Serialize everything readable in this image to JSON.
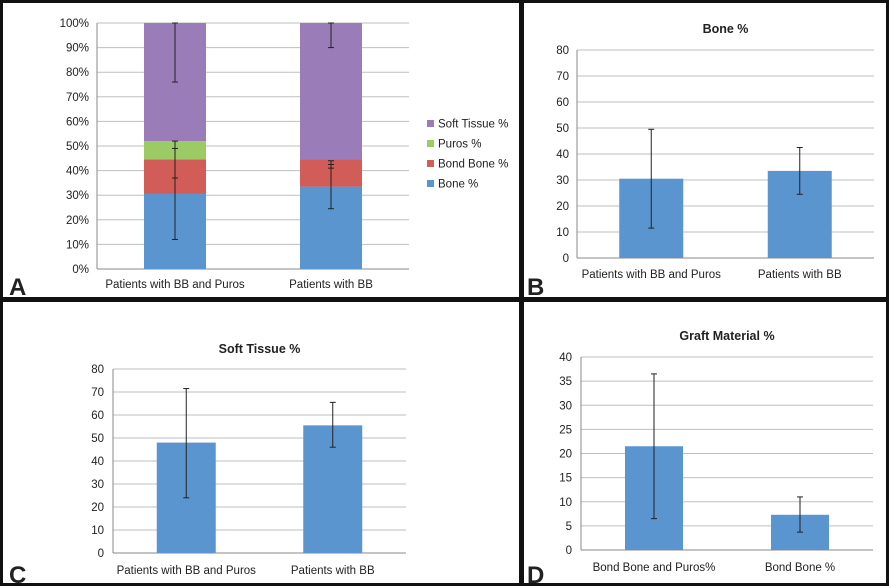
{
  "figure": {
    "colors": {
      "frame": "#111111",
      "grid": "#bfbfbf",
      "bar": "#5b95cf",
      "error": "#222222",
      "bone": "#5b95cf",
      "bond_bone": "#d25c57",
      "puros": "#9ccb65",
      "soft_tissue": "#9a7db8"
    }
  },
  "chart_data": [
    {
      "panel": "A",
      "type": "bar",
      "stacked": true,
      "title": "",
      "categories": [
        "Patients with BB and Puros",
        "Patients with BB"
      ],
      "ylim": [
        0,
        100
      ],
      "yticks": [
        "0%",
        "10%",
        "20%",
        "30%",
        "40%",
        "50%",
        "60%",
        "70%",
        "80%",
        "90%",
        "100%"
      ],
      "grid": true,
      "legend_position": "right",
      "series": [
        {
          "name": "Bone %",
          "color": "#5b95cf",
          "values": [
            30.5,
            33.5
          ],
          "error_bars": [
            [
              12,
              49
            ],
            [
              24.5,
              42.5
            ]
          ]
        },
        {
          "name": "Bond Bone %",
          "color": "#d25c57",
          "values": [
            14,
            11
          ],
          "error_bars": [
            [
              37,
              52
            ],
            [
              41,
              44
            ]
          ]
        },
        {
          "name": "Puros %",
          "color": "#9ccb65",
          "values": [
            7.5,
            0
          ]
        },
        {
          "name": "Soft Tissue %",
          "color": "#9a7db8",
          "values": [
            48,
            55.5
          ],
          "error_bars": [
            [
              76,
              100
            ],
            [
              90,
              100
            ]
          ]
        }
      ],
      "legend_order": [
        "Soft Tissue %",
        "Puros %",
        "Bond Bone %",
        "Bone %"
      ]
    },
    {
      "panel": "B",
      "type": "bar",
      "title": "Bone %",
      "categories": [
        "Patients with BB and Puros",
        "Patients with BB"
      ],
      "values": [
        30.5,
        33.5
      ],
      "error_bars": [
        [
          11.5,
          49.5
        ],
        [
          24.5,
          42.5
        ]
      ],
      "ylim": [
        0,
        80
      ],
      "yticks": [
        0,
        10,
        20,
        30,
        40,
        50,
        60,
        70,
        80
      ],
      "grid": true
    },
    {
      "panel": "C",
      "type": "bar",
      "title": "Soft Tissue %",
      "categories": [
        "Patients with BB and Puros",
        "Patients with BB"
      ],
      "values": [
        48,
        55.5
      ],
      "error_bars": [
        [
          24,
          71.5
        ],
        [
          46,
          65.5
        ]
      ],
      "ylim": [
        0,
        80
      ],
      "yticks": [
        0,
        10,
        20,
        30,
        40,
        50,
        60,
        70,
        80
      ],
      "grid": true
    },
    {
      "panel": "D",
      "type": "bar",
      "title": "Graft Material %",
      "categories": [
        "Bond Bone and Puros%",
        "Bond Bone %"
      ],
      "values": [
        21.5,
        7.3
      ],
      "error_bars": [
        [
          6.5,
          36.5
        ],
        [
          3.7,
          11
        ]
      ],
      "ylim": [
        0,
        40
      ],
      "yticks": [
        0,
        5,
        10,
        15,
        20,
        25,
        30,
        35,
        40
      ],
      "grid": true
    }
  ]
}
